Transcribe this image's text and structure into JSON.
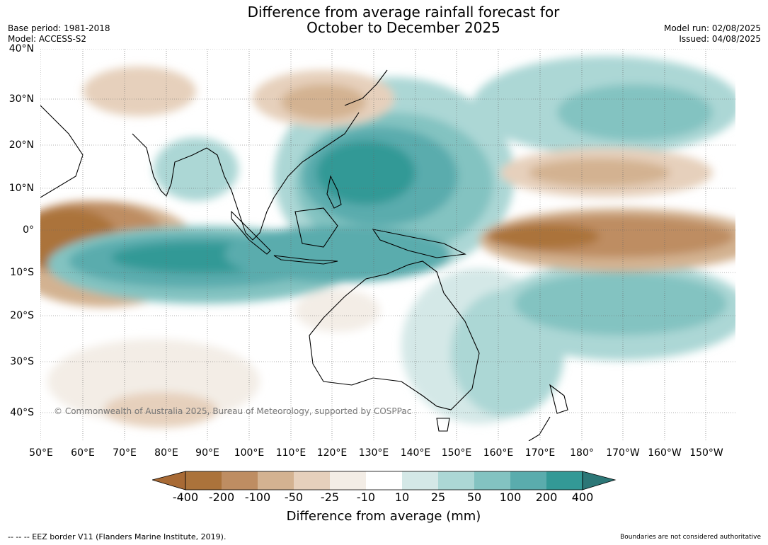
{
  "title": {
    "line1": "Difference from average rainfall forecast for",
    "line2": "October to December 2025"
  },
  "meta": {
    "base_period": "Base period: 1981-2018",
    "model": "Model: ACCESS-S2",
    "model_run": "Model run: 02/08/2025",
    "issued": "Issued: 04/08/2025"
  },
  "map": {
    "lat_labels": [
      "40°N",
      "30°N",
      "20°N",
      "10°N",
      "0°",
      "10°S",
      "20°S",
      "30°S",
      "40°S"
    ],
    "lon_labels": [
      "50°E",
      "60°E",
      "70°E",
      "80°E",
      "90°E",
      "100°E",
      "110°E",
      "120°E",
      "130°E",
      "140°E",
      "150°E",
      "160°E",
      "170°E",
      "180°",
      "170°W",
      "160°W",
      "150°W"
    ],
    "copyright": "© Commonwealth of Australia 2025, Bureau of Meteorology, supported by COSPPac"
  },
  "colorbar": {
    "ticks": [
      "-400",
      "-200",
      "-100",
      "-50",
      "-25",
      "-10",
      "10",
      "25",
      "50",
      "100",
      "200",
      "400"
    ],
    "colors": [
      "#a86a35",
      "#ab733b",
      "#be8d62",
      "#d3b291",
      "#e6d0bc",
      "#f3ede6",
      "#ffffff",
      "#d4e8e7",
      "#acd7d5",
      "#83c3c1",
      "#5aacad",
      "#339996",
      "#2c7777"
    ],
    "label": "Difference from average (mm)"
  },
  "footer": {
    "eez_note": "-- -- -- EEZ border V11 (Flanders Marine Institute, 2019).",
    "boundaries_note": "Boundaries are not considered authoritative"
  }
}
